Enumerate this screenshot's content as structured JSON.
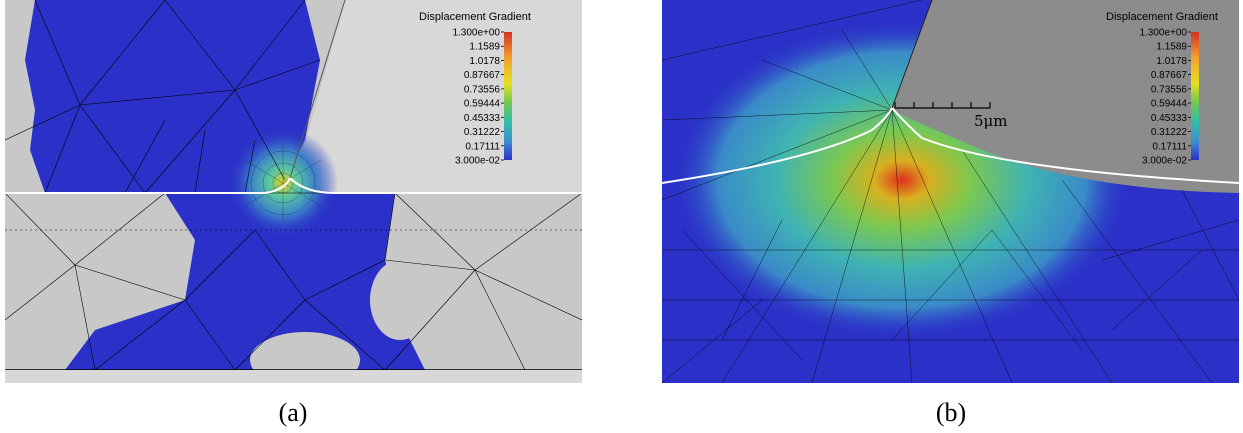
{
  "panels": [
    {
      "caption": "(a)",
      "legend": {
        "title": "Displacement Gradient",
        "ticks": [
          "1.300e+00",
          "1.1589",
          "1.0178",
          "0.87667",
          "0.73556",
          "0.59444",
          "0.45333",
          "0.31222",
          "0.17111",
          "3.000e-02"
        ]
      }
    },
    {
      "caption": "(b)",
      "legend": {
        "title": "Displacement Gradient",
        "ticks": [
          "1.300e+00",
          "1.1589",
          "1.0178",
          "0.87667",
          "0.73556",
          "0.59444",
          "0.45333",
          "0.31222",
          "0.17111",
          "3.000e-02"
        ]
      },
      "scale_bar_label": "5μm"
    }
  ],
  "colors": {
    "background_gray": "#c8c8c8",
    "tool_gray_a": "#d8d8d8",
    "tool_gray_b": "#8c8c8c",
    "field_blue": "#2b31c8",
    "field_cyan": "#3fb3b3",
    "field_green": "#78c850",
    "field_red": "#e0301e",
    "mesh_line": "#000000",
    "surface_line": "#ffffff"
  }
}
